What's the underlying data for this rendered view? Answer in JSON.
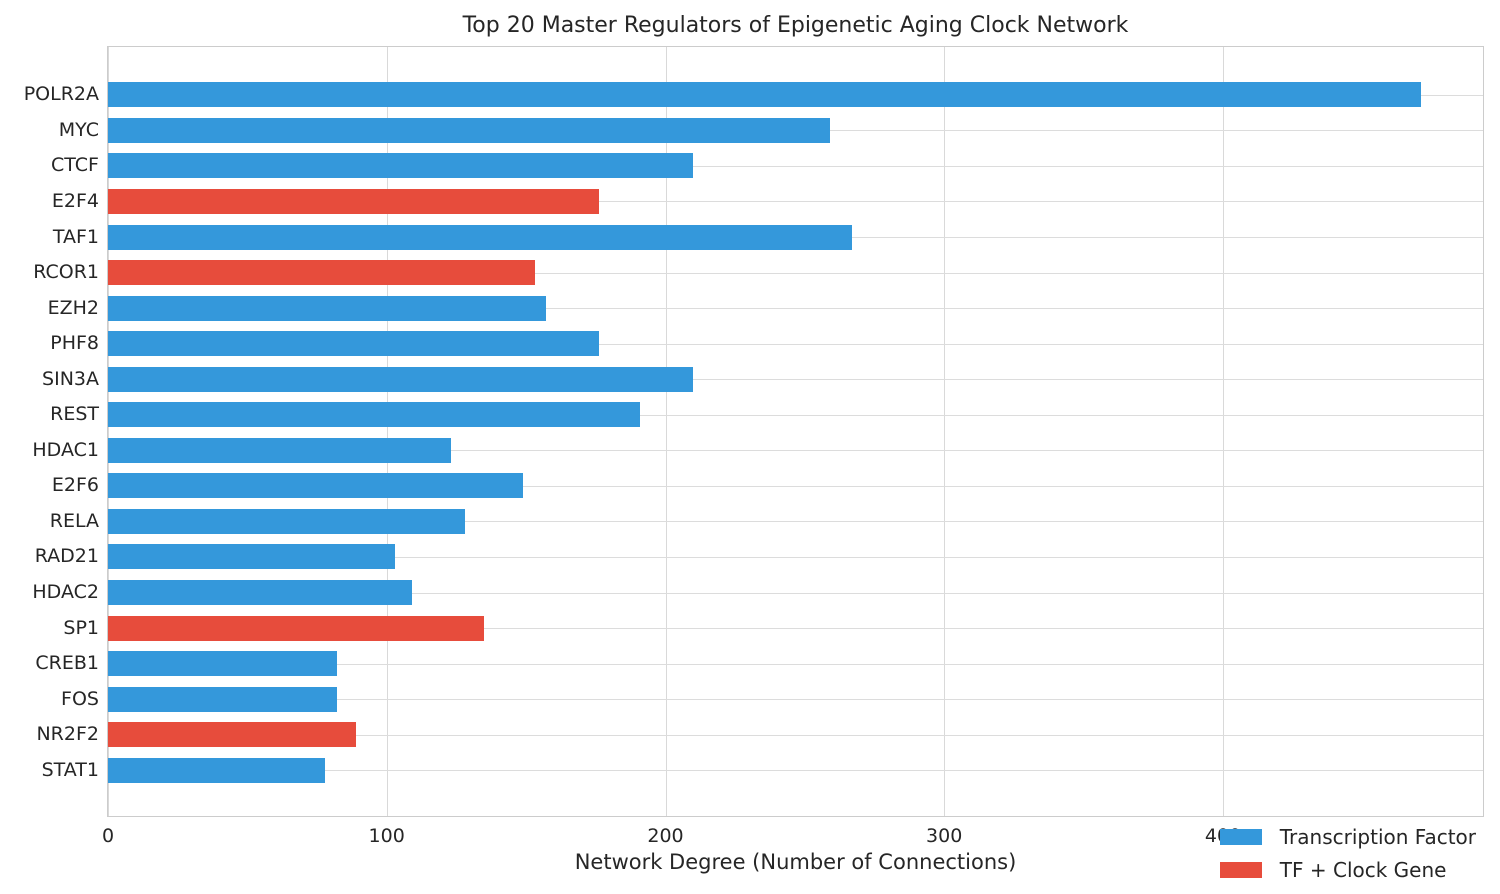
{
  "chart_data": {
    "type": "bar",
    "orientation": "horizontal",
    "title": "Top 20 Master Regulators of Epigenetic Aging Clock Network",
    "xlabel": "Network Degree (Number of Connections)",
    "ylabel": "",
    "xlim": [
      0,
      494
    ],
    "xticks": [
      0,
      100,
      200,
      300,
      400
    ],
    "grid": true,
    "background": "#ffffff",
    "palette": {
      "tf": "#3498db",
      "tf_clock": "#e74c3c"
    },
    "categories": [
      "POLR2A",
      "MYC",
      "CTCF",
      "E2F4",
      "TAF1",
      "RCOR1",
      "EZH2",
      "PHF8",
      "SIN3A",
      "REST",
      "HDAC1",
      "E2F6",
      "RELA",
      "RAD21",
      "HDAC2",
      "SP1",
      "CREB1",
      "FOS",
      "NR2F2",
      "STAT1"
    ],
    "values": [
      471,
      259,
      210,
      176,
      267,
      153,
      157,
      176,
      210,
      191,
      123,
      149,
      128,
      103,
      109,
      135,
      82,
      82,
      89,
      78
    ],
    "bars": [
      {
        "gene": "POLR2A",
        "degree": 471,
        "group": "tf"
      },
      {
        "gene": "MYC",
        "degree": 259,
        "group": "tf"
      },
      {
        "gene": "CTCF",
        "degree": 210,
        "group": "tf"
      },
      {
        "gene": "E2F4",
        "degree": 176,
        "group": "tf_clock"
      },
      {
        "gene": "TAF1",
        "degree": 267,
        "group": "tf"
      },
      {
        "gene": "RCOR1",
        "degree": 153,
        "group": "tf_clock"
      },
      {
        "gene": "EZH2",
        "degree": 157,
        "group": "tf"
      },
      {
        "gene": "PHF8",
        "degree": 176,
        "group": "tf"
      },
      {
        "gene": "SIN3A",
        "degree": 210,
        "group": "tf"
      },
      {
        "gene": "REST",
        "degree": 191,
        "group": "tf"
      },
      {
        "gene": "HDAC1",
        "degree": 123,
        "group": "tf"
      },
      {
        "gene": "E2F6",
        "degree": 149,
        "group": "tf"
      },
      {
        "gene": "RELA",
        "degree": 128,
        "group": "tf"
      },
      {
        "gene": "RAD21",
        "degree": 103,
        "group": "tf"
      },
      {
        "gene": "HDAC2",
        "degree": 109,
        "group": "tf"
      },
      {
        "gene": "SP1",
        "degree": 135,
        "group": "tf_clock"
      },
      {
        "gene": "CREB1",
        "degree": 82,
        "group": "tf"
      },
      {
        "gene": "FOS",
        "degree": 82,
        "group": "tf"
      },
      {
        "gene": "NR2F2",
        "degree": 89,
        "group": "tf_clock"
      },
      {
        "gene": "STAT1",
        "degree": 78,
        "group": "tf"
      }
    ],
    "legend": {
      "position": "lower right",
      "frame": false,
      "entries": [
        {
          "label": "Transcription Factor",
          "color": "#3498db",
          "group": "tf"
        },
        {
          "label": "TF + Clock Gene",
          "color": "#e74c3c",
          "group": "tf_clock"
        }
      ]
    },
    "grid_color": "#d9d9d9",
    "spine_color": "#cccccc",
    "text_color": "#262626"
  }
}
